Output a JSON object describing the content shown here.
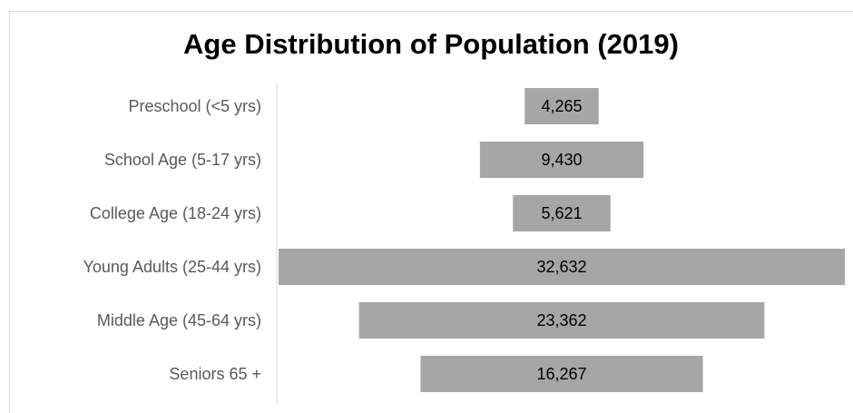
{
  "chart_data": {
    "type": "bar",
    "subtype": "funnel",
    "title": "Age Distribution of Population (2019)",
    "xlabel": "",
    "ylabel": "",
    "categories": [
      "Preschool (<5 yrs)",
      "School Age (5-17 yrs)",
      "College Age (18-24 yrs)",
      "Young Adults (25-44 yrs)",
      "Middle Age (45-64 yrs)",
      "Seniors 65 +"
    ],
    "values": [
      4265,
      9430,
      5621,
      32632,
      23362,
      16267
    ],
    "value_labels": [
      "4,265",
      "9,430",
      "5,621",
      "32,632",
      "23,362",
      "16,267"
    ],
    "bar_color": "#a6a6a6",
    "axis_color": "#d9d9d9",
    "grid": false,
    "legend": "none"
  }
}
